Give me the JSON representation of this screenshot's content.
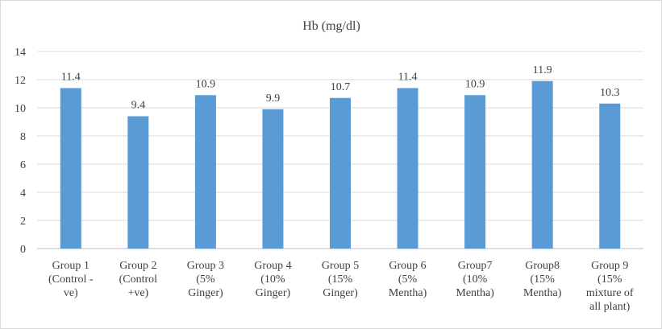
{
  "chart_data": {
    "type": "bar",
    "title": "Hb (mg/dl)",
    "xlabel": "",
    "ylabel": "",
    "ylim": [
      0,
      14
    ],
    "yticks": [
      0,
      2,
      4,
      6,
      8,
      10,
      12,
      14
    ],
    "grid": true,
    "legend": "none",
    "bar_color": "#5b9bd5",
    "categories": [
      [
        "Group 1",
        "(Control -",
        "ve)"
      ],
      [
        "Group 2",
        "(Control",
        "+ve)"
      ],
      [
        "Group 3",
        "(5%",
        "Ginger)"
      ],
      [
        "Group 4",
        "(10%",
        "Ginger)"
      ],
      [
        "Group 5",
        "(15%",
        "Ginger)"
      ],
      [
        "Group 6",
        "(5%",
        "Mentha)"
      ],
      [
        "Group7",
        "(10%",
        "Mentha)"
      ],
      [
        "Group8",
        "(15%",
        "Mentha)"
      ],
      [
        "Group 9",
        "(15%",
        "mixture of",
        "all plant)"
      ]
    ],
    "values": [
      11.4,
      9.4,
      10.9,
      9.9,
      10.7,
      11.4,
      10.9,
      11.9,
      10.3
    ],
    "data_labels": [
      "11.4",
      "9.4",
      "10.9",
      "9.9",
      "10.7",
      "11.4",
      "10.9",
      "11.9",
      "10.3"
    ]
  }
}
